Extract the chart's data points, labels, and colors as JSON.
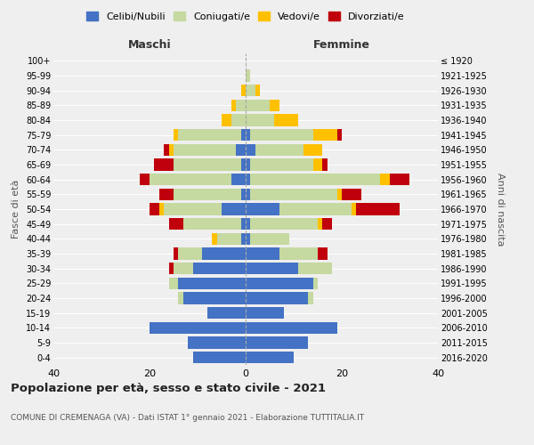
{
  "age_groups": [
    "0-4",
    "5-9",
    "10-14",
    "15-19",
    "20-24",
    "25-29",
    "30-34",
    "35-39",
    "40-44",
    "45-49",
    "50-54",
    "55-59",
    "60-64",
    "65-69",
    "70-74",
    "75-79",
    "80-84",
    "85-89",
    "90-94",
    "95-99",
    "100+"
  ],
  "birth_years": [
    "2016-2020",
    "2011-2015",
    "2006-2010",
    "2001-2005",
    "1996-2000",
    "1991-1995",
    "1986-1990",
    "1981-1985",
    "1976-1980",
    "1971-1975",
    "1966-1970",
    "1961-1965",
    "1956-1960",
    "1951-1955",
    "1946-1950",
    "1941-1945",
    "1936-1940",
    "1931-1935",
    "1926-1930",
    "1921-1925",
    "≤ 1920"
  ],
  "colors": {
    "celibi": "#4472c4",
    "coniugati": "#c5d9a0",
    "vedovi": "#ffc000",
    "divorziati": "#c0000c"
  },
  "maschi": {
    "celibi": [
      11,
      12,
      20,
      8,
      13,
      14,
      11,
      9,
      1,
      1,
      5,
      1,
      3,
      1,
      2,
      1,
      0,
      0,
      0,
      0,
      0
    ],
    "coniugati": [
      0,
      0,
      0,
      0,
      1,
      2,
      4,
      5,
      5,
      12,
      12,
      14,
      17,
      14,
      13,
      13,
      3,
      2,
      0,
      0,
      0
    ],
    "vedovi": [
      0,
      0,
      0,
      0,
      0,
      0,
      0,
      0,
      1,
      0,
      1,
      0,
      0,
      0,
      1,
      1,
      2,
      1,
      1,
      0,
      0
    ],
    "divorziati": [
      0,
      0,
      0,
      0,
      0,
      0,
      1,
      1,
      0,
      3,
      2,
      3,
      2,
      4,
      1,
      0,
      0,
      0,
      0,
      0,
      0
    ]
  },
  "femmine": {
    "celibi": [
      10,
      13,
      19,
      8,
      13,
      14,
      11,
      7,
      1,
      1,
      7,
      1,
      1,
      1,
      2,
      1,
      0,
      0,
      0,
      0,
      0
    ],
    "coniugati": [
      0,
      0,
      0,
      0,
      1,
      1,
      7,
      8,
      8,
      14,
      15,
      18,
      27,
      13,
      10,
      13,
      6,
      5,
      2,
      1,
      0
    ],
    "vedovi": [
      0,
      0,
      0,
      0,
      0,
      0,
      0,
      0,
      0,
      1,
      1,
      1,
      2,
      2,
      4,
      5,
      5,
      2,
      1,
      0,
      0
    ],
    "divorziati": [
      0,
      0,
      0,
      0,
      0,
      0,
      0,
      2,
      0,
      2,
      9,
      4,
      4,
      1,
      0,
      1,
      0,
      0,
      0,
      0,
      0
    ]
  },
  "title": "Popolazione per età, sesso e stato civile - 2021",
  "subtitle": "COMUNE DI CREMENAGA (VA) - Dati ISTAT 1° gennaio 2021 - Elaborazione TUTTITALIA.IT",
  "xlabel_left": "Maschi",
  "xlabel_right": "Femmine",
  "ylabel_left": "Fasce di età",
  "ylabel_right": "Anni di nascita",
  "xlim": 40,
  "bg_color": "#efefef",
  "grid_color": "#ffffff",
  "legend_labels": [
    "Celibi/Nubili",
    "Coniugati/e",
    "Vedovi/e",
    "Divorziati/e"
  ]
}
